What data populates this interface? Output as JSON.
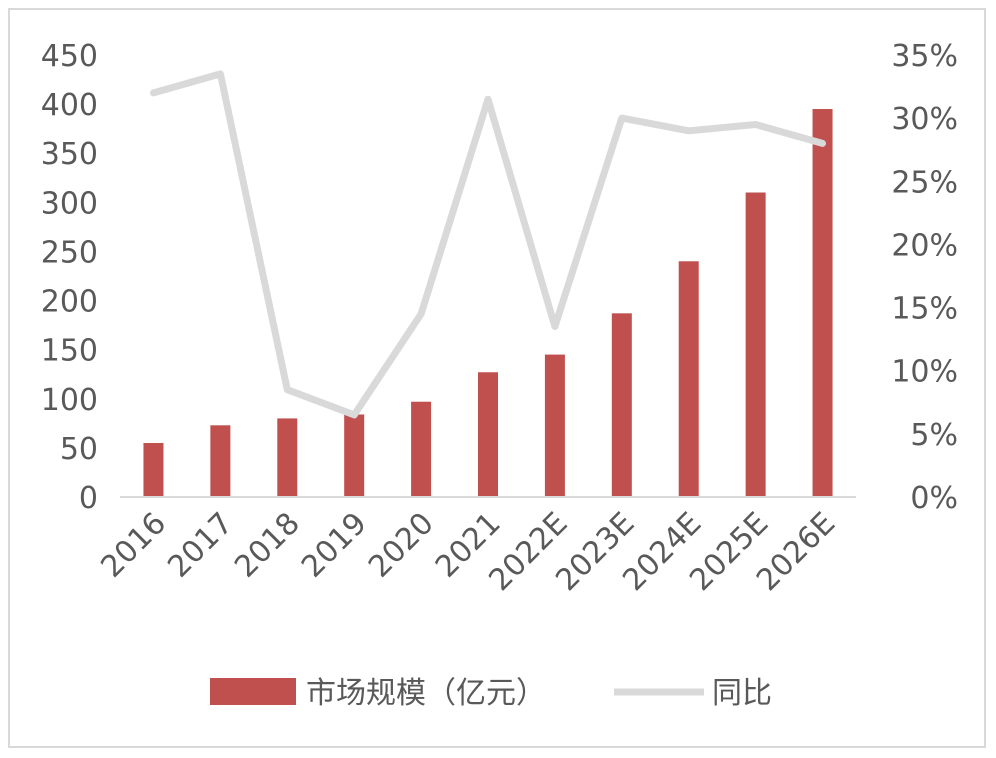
{
  "chart_data": {
    "type": "bar",
    "categories": [
      "2016",
      "2017",
      "2018",
      "2019",
      "2020",
      "2021",
      "2022E",
      "2023E",
      "2024E",
      "2025E",
      "2026E"
    ],
    "series": [
      {
        "name": "市场规模（亿元）",
        "type": "bar",
        "axis": "left",
        "values": [
          55,
          73,
          80,
          84,
          97,
          127,
          145,
          187,
          240,
          310,
          395
        ],
        "color": "#c0504d"
      },
      {
        "name": "同比",
        "type": "line",
        "axis": "right",
        "values": [
          0.32,
          0.335,
          0.085,
          0.065,
          0.145,
          0.315,
          0.135,
          0.3,
          0.29,
          0.295,
          0.28
        ],
        "color": "#d9d9d9"
      }
    ],
    "ylim_left": [
      0,
      450
    ],
    "yticks_left": [
      "0",
      "50",
      "100",
      "150",
      "200",
      "250",
      "300",
      "350",
      "400",
      "450"
    ],
    "ylim_right": [
      0,
      0.35
    ],
    "yticks_right": [
      "0%",
      "5%",
      "10%",
      "15%",
      "20%",
      "25%",
      "30%",
      "35%"
    ],
    "grid": false,
    "legend_position": "bottom"
  }
}
